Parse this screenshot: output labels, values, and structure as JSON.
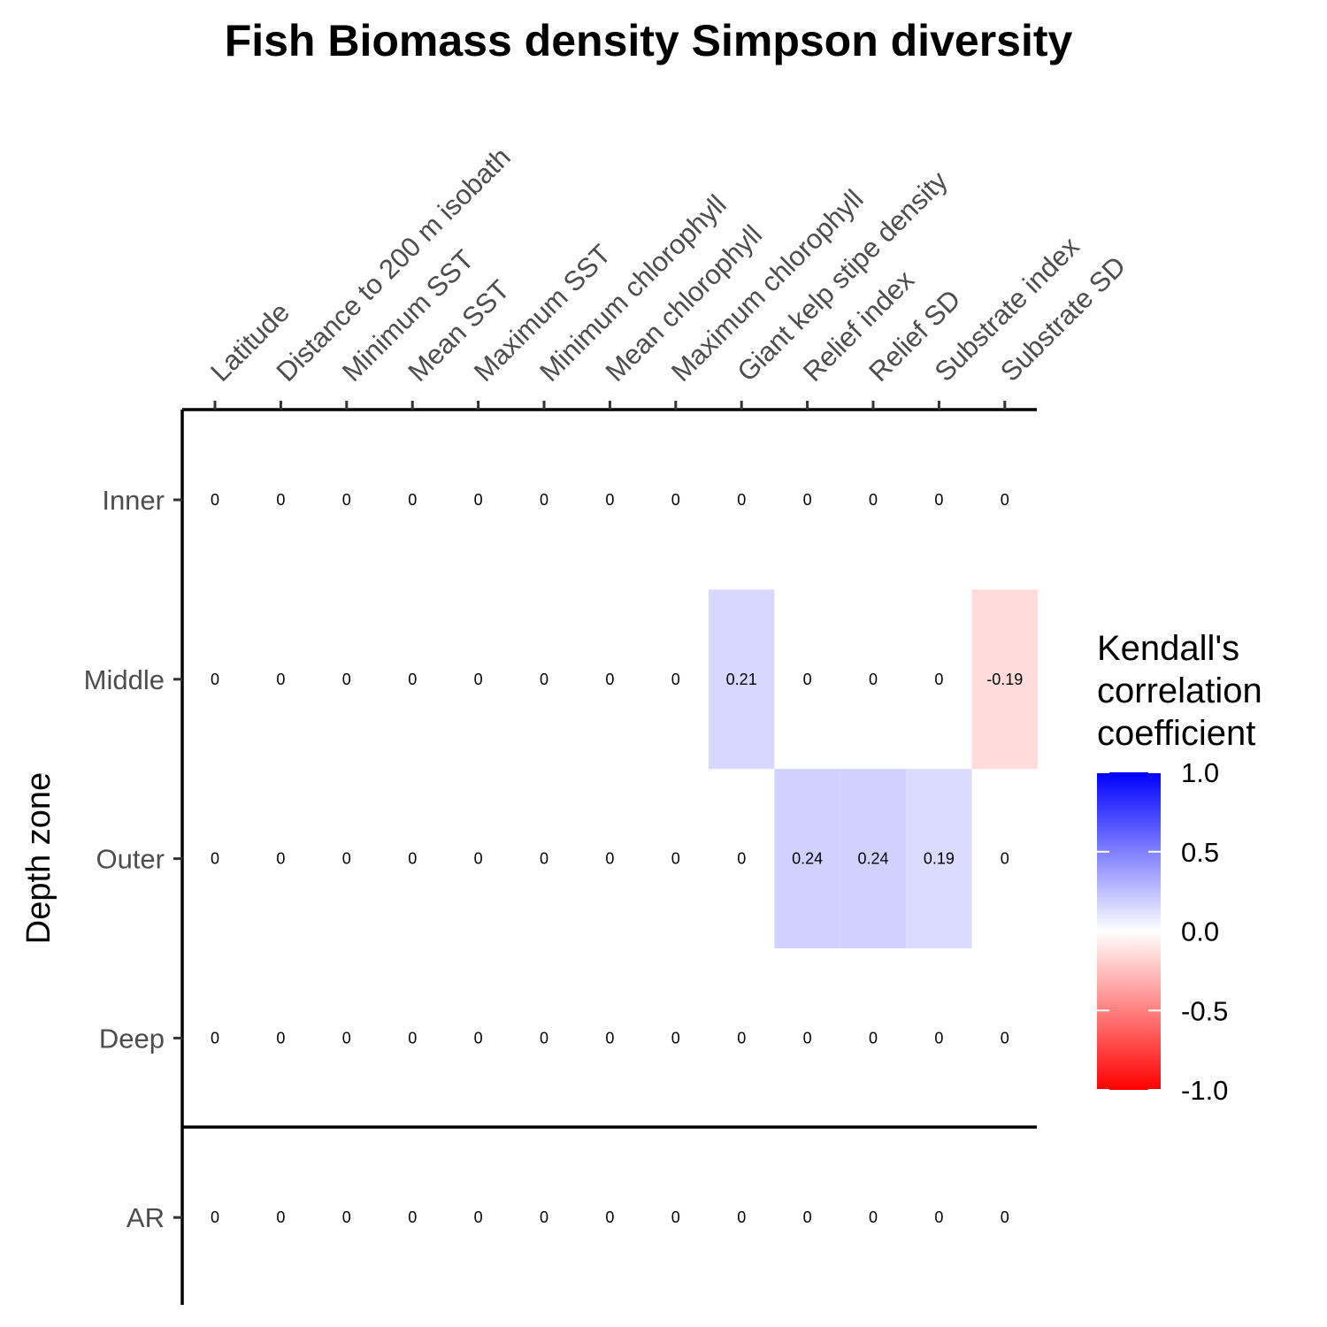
{
  "chart_data": {
    "type": "heatmap",
    "title": "Fish Biomass density Simpson diversity",
    "ylabel": "Depth zone",
    "x": [
      "Latitude",
      "Distance to 200 m isobath",
      "Minimum SST",
      "Mean SST",
      "Maximum SST",
      "Minimum chlorophyll",
      "Mean chlorophyll",
      "Maximum chlorophyll",
      "Giant kelp stipe density",
      "Relief index",
      "Relief SD",
      "Substrate index",
      "Substrate SD"
    ],
    "y": [
      "Inner",
      "Middle",
      "Outer",
      "Deep",
      "AR"
    ],
    "values": [
      [
        0,
        0,
        0,
        0,
        0,
        0,
        0,
        0,
        0,
        0,
        0,
        0,
        0
      ],
      [
        0,
        0,
        0,
        0,
        0,
        0,
        0,
        0,
        0.21,
        0,
        0,
        0,
        -0.19
      ],
      [
        0,
        0,
        0,
        0,
        0,
        0,
        0,
        0,
        0,
        0.24,
        0.24,
        0.19,
        0
      ],
      [
        0,
        0,
        0,
        0,
        0,
        0,
        0,
        0,
        0,
        0,
        0,
        0,
        0
      ],
      [
        0,
        0,
        0,
        0,
        0,
        0,
        0,
        0,
        0,
        0,
        0,
        0,
        0
      ]
    ],
    "labels": [
      [
        "0",
        "0",
        "0",
        "0",
        "0",
        "0",
        "0",
        "0",
        "0",
        "0",
        "0",
        "0",
        "0"
      ],
      [
        "0",
        "0",
        "0",
        "0",
        "0",
        "0",
        "0",
        "0",
        "0.21",
        "0",
        "0",
        "0",
        "-0.19"
      ],
      [
        "0",
        "0",
        "0",
        "0",
        "0",
        "0",
        "0",
        "0",
        "0",
        "0.24",
        "0.24",
        "0.19",
        "0"
      ],
      [
        "0",
        "0",
        "0",
        "0",
        "0",
        "0",
        "0",
        "0",
        "0",
        "0",
        "0",
        "0",
        "0"
      ],
      [
        "0",
        "0",
        "0",
        "0",
        "0",
        "0",
        "0",
        "0",
        "0",
        "0",
        "0",
        "0",
        "0"
      ]
    ],
    "legend": {
      "title": [
        "Kendall's",
        "correlation",
        "coefficient"
      ],
      "ticks": [
        1.0,
        0.5,
        0.0,
        -0.5,
        -1.0
      ],
      "tick_labels": [
        "1.0",
        "0.5",
        "0.0",
        "-0.5",
        "-1.0"
      ],
      "range": [
        -1,
        1
      ],
      "placement": "right"
    },
    "colors": {
      "low": "#ff0000",
      "mid": "#ffffff",
      "high": "#0000ff"
    },
    "x_axis_position": "top",
    "grid": false
  }
}
